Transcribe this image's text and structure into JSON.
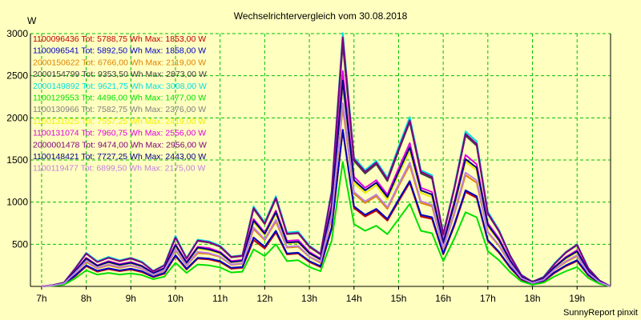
{
  "chart_data": {
    "type": "line",
    "title": "Wechselrichtervergleich vom 30.08.2018",
    "ylabel": "W",
    "xlabel": "",
    "footer": "SunnyReport pinxit",
    "x_ticks": [
      "7h",
      "8h",
      "9h",
      "10h",
      "11h",
      "12h",
      "13h",
      "14h",
      "15h",
      "16h",
      "17h",
      "18h",
      "19h"
    ],
    "xlim": [
      6.75,
      19.75
    ],
    "ylim": [
      0,
      3000
    ],
    "y_ticks": [
      500,
      1000,
      1500,
      2000,
      2500,
      3000
    ],
    "grid": true,
    "legend_position": "top-left",
    "time": [
      "7:00",
      "7:15",
      "7:30",
      "7:45",
      "8:00",
      "8:15",
      "8:30",
      "8:45",
      "9:00",
      "9:15",
      "9:30",
      "9:45",
      "10:00",
      "10:15",
      "10:30",
      "10:45",
      "11:00",
      "11:15",
      "11:30",
      "11:45",
      "12:00",
      "12:15",
      "12:30",
      "12:45",
      "13:00",
      "13:15",
      "13:30",
      "13:45",
      "14:00",
      "14:15",
      "14:30",
      "14:45",
      "15:00",
      "15:15",
      "15:30",
      "15:45",
      "16:00",
      "16:15",
      "16:30",
      "16:45",
      "17:00",
      "17:15",
      "17:30",
      "17:45",
      "18:00",
      "18:15",
      "18:30",
      "18:45",
      "19:00",
      "19:15",
      "19:30",
      "19:45"
    ],
    "series": [
      {
        "name": "1100096436",
        "label": "1100096436 Tot: 5788,75 Wh Max: 1853,00 W",
        "color": "#c00000",
        "values": [
          0,
          10,
          30,
          120,
          240,
          175,
          205,
          180,
          200,
          170,
          110,
          150,
          360,
          200,
          330,
          320,
          290,
          210,
          220,
          550,
          450,
          640,
          380,
          390,
          290,
          230,
          680,
          1850,
          930,
          830,
          900,
          780,
          1010,
          1230,
          830,
          800,
          380,
          720,
          1120,
          1050,
          540,
          400,
          220,
          80,
          30,
          60,
          160,
          240,
          300,
          130,
          40,
          0
        ]
      },
      {
        "name": "1100096541",
        "label": "1100096541 Tot: 5892,50 Wh Max: 1858,00 W",
        "color": "#0000c0",
        "values": [
          0,
          10,
          30,
          130,
          250,
          185,
          215,
          190,
          210,
          180,
          115,
          160,
          370,
          210,
          340,
          330,
          300,
          220,
          230,
          580,
          470,
          660,
          390,
          400,
          300,
          240,
          700,
          1860,
          950,
          850,
          920,
          800,
          1030,
          1250,
          850,
          820,
          390,
          740,
          1140,
          1070,
          550,
          410,
          230,
          90,
          35,
          70,
          170,
          250,
          310,
          140,
          45,
          0
        ]
      },
      {
        "name": "2000150622",
        "label": "2000150622 Tot: 6766,00 Wh Max: 2119,00 W",
        "color": "#e08000",
        "values": [
          0,
          12,
          35,
          160,
          290,
          215,
          250,
          220,
          245,
          210,
          135,
          185,
          430,
          245,
          395,
          385,
          350,
          255,
          270,
          680,
          550,
          770,
          460,
          470,
          350,
          280,
          820,
          2120,
          1100,
          990,
          1070,
          920,
          1190,
          1440,
          990,
          950,
          450,
          860,
          1320,
          1230,
          640,
          480,
          270,
          100,
          40,
          80,
          200,
          290,
          360,
          160,
          50,
          0
        ]
      },
      {
        "name": "2000154799",
        "label": "2000154799 Tot: 9353,50 Wh Max: 2873,00 W",
        "color": "#404040",
        "values": [
          0,
          15,
          45,
          210,
          390,
          290,
          340,
          300,
          330,
          285,
          180,
          250,
          580,
          330,
          540,
          520,
          470,
          345,
          360,
          920,
          740,
          1040,
          620,
          630,
          470,
          380,
          1110,
          2870,
          1490,
          1340,
          1450,
          1250,
          1610,
          1950,
          1340,
          1280,
          610,
          1160,
          1790,
          1670,
          860,
          650,
          360,
          135,
          55,
          110,
          270,
          400,
          490,
          215,
          70,
          0
        ]
      },
      {
        "name": "2000149892",
        "label": "2000149892 Tot: 9621,75 Wh Max: 3008,00 W",
        "color": "#00e0e0",
        "values": [
          0,
          15,
          45,
          215,
          400,
          300,
          350,
          310,
          340,
          295,
          185,
          255,
          600,
          340,
          555,
          535,
          485,
          355,
          370,
          950,
          760,
          1070,
          640,
          650,
          485,
          390,
          1140,
          3008,
          1530,
          1380,
          1490,
          1290,
          1660,
          2010,
          1380,
          1320,
          630,
          1190,
          1840,
          1720,
          890,
          670,
          370,
          140,
          55,
          115,
          280,
          410,
          500,
          220,
          70,
          0
        ]
      },
      {
        "name": "1100129553",
        "label": "1100129553 Tot: 4496,00 Wh Max: 1477,00 W",
        "color": "#00e000",
        "values": [
          0,
          8,
          20,
          95,
          190,
          140,
          160,
          140,
          155,
          135,
          85,
          115,
          280,
          160,
          260,
          250,
          225,
          165,
          175,
          440,
          360,
          500,
          300,
          310,
          230,
          180,
          540,
          1477,
          740,
          660,
          720,
          620,
          800,
          980,
          660,
          630,
          300,
          570,
          880,
          820,
          420,
          310,
          170,
          60,
          20,
          45,
          120,
          180,
          230,
          100,
          30,
          0
        ]
      },
      {
        "name": "1100130966",
        "label": "1100130966 Tot: 7582,75 Wh Max: 2376,00 W",
        "color": "#808080",
        "values": [
          0,
          12,
          38,
          175,
          325,
          240,
          285,
          250,
          275,
          235,
          150,
          210,
          480,
          275,
          450,
          430,
          390,
          285,
          300,
          760,
          610,
          860,
          510,
          520,
          390,
          315,
          920,
          2376,
          1230,
          1110,
          1200,
          1030,
          1330,
          1610,
          1110,
          1060,
          505,
          960,
          1480,
          1380,
          710,
          540,
          300,
          110,
          45,
          90,
          225,
          330,
          405,
          175,
          55,
          0
        ]
      },
      {
        "name": "1100131025",
        "label": "1100131025 Tot: 7557,25 Wh Max: 2419,00 W",
        "color": "#f0f000",
        "values": [
          0,
          12,
          38,
          175,
          325,
          240,
          285,
          250,
          275,
          235,
          150,
          210,
          480,
          275,
          450,
          430,
          390,
          285,
          300,
          760,
          610,
          860,
          510,
          520,
          390,
          315,
          920,
          2419,
          1230,
          1110,
          1200,
          1030,
          1330,
          1610,
          1110,
          1060,
          505,
          960,
          1480,
          1380,
          710,
          540,
          300,
          110,
          45,
          90,
          225,
          330,
          405,
          175,
          55,
          0
        ]
      },
      {
        "name": "1100131074",
        "label": "1100131074 Tot: 7960,75 Wh Max: 2556,00 W",
        "color": "#e000e0",
        "values": [
          0,
          13,
          40,
          180,
          340,
          250,
          300,
          265,
          290,
          245,
          160,
          220,
          500,
          290,
          470,
          455,
          410,
          300,
          315,
          800,
          640,
          900,
          540,
          550,
          410,
          330,
          970,
          2556,
          1300,
          1170,
          1260,
          1090,
          1400,
          1700,
          1170,
          1120,
          530,
          1010,
          1560,
          1450,
          750,
          570,
          315,
          115,
          45,
          95,
          235,
          350,
          430,
          185,
          60,
          0
        ]
      },
      {
        "name": "2000001478",
        "label": "2000001478 Tot: 9474,00 Wh Max: 2956,00 W",
        "color": "#800080",
        "values": [
          0,
          15,
          45,
          210,
          390,
          290,
          340,
          300,
          335,
          285,
          180,
          250,
          580,
          330,
          545,
          525,
          475,
          350,
          365,
          930,
          745,
          1050,
          625,
          635,
          475,
          385,
          1120,
          2956,
          1510,
          1360,
          1470,
          1270,
          1630,
          1970,
          1360,
          1300,
          620,
          1170,
          1810,
          1690,
          870,
          660,
          365,
          135,
          55,
          110,
          270,
          405,
          495,
          215,
          70,
          0
        ]
      },
      {
        "name": "1100148421",
        "label": "1100148421 Tot: 7727,25 Wh Max: 2443,00 W",
        "color": "#000080",
        "values": [
          0,
          12,
          39,
          178,
          330,
          245,
          290,
          255,
          280,
          240,
          155,
          215,
          490,
          280,
          460,
          440,
          400,
          290,
          305,
          780,
          625,
          880,
          520,
          530,
          395,
          320,
          940,
          2443,
          1260,
          1140,
          1230,
          1060,
          1360,
          1650,
          1140,
          1090,
          515,
          980,
          1510,
          1410,
          730,
          550,
          305,
          112,
          46,
          92,
          230,
          340,
          415,
          180,
          58,
          0
        ]
      },
      {
        "name": "1100119477",
        "label": "1100119477 Tot: 6899,50 Wh Max: 2175,00 W",
        "color": "#c080e0",
        "values": [
          0,
          11,
          35,
          160,
          300,
          220,
          260,
          230,
          250,
          215,
          140,
          190,
          440,
          250,
          410,
          395,
          355,
          260,
          275,
          700,
          560,
          790,
          470,
          480,
          355,
          290,
          840,
          2175,
          1120,
          1010,
          1090,
          940,
          1210,
          1470,
          1010,
          970,
          460,
          880,
          1350,
          1260,
          650,
          490,
          275,
          100,
          40,
          80,
          205,
          300,
          370,
          160,
          50,
          0
        ]
      }
    ]
  }
}
